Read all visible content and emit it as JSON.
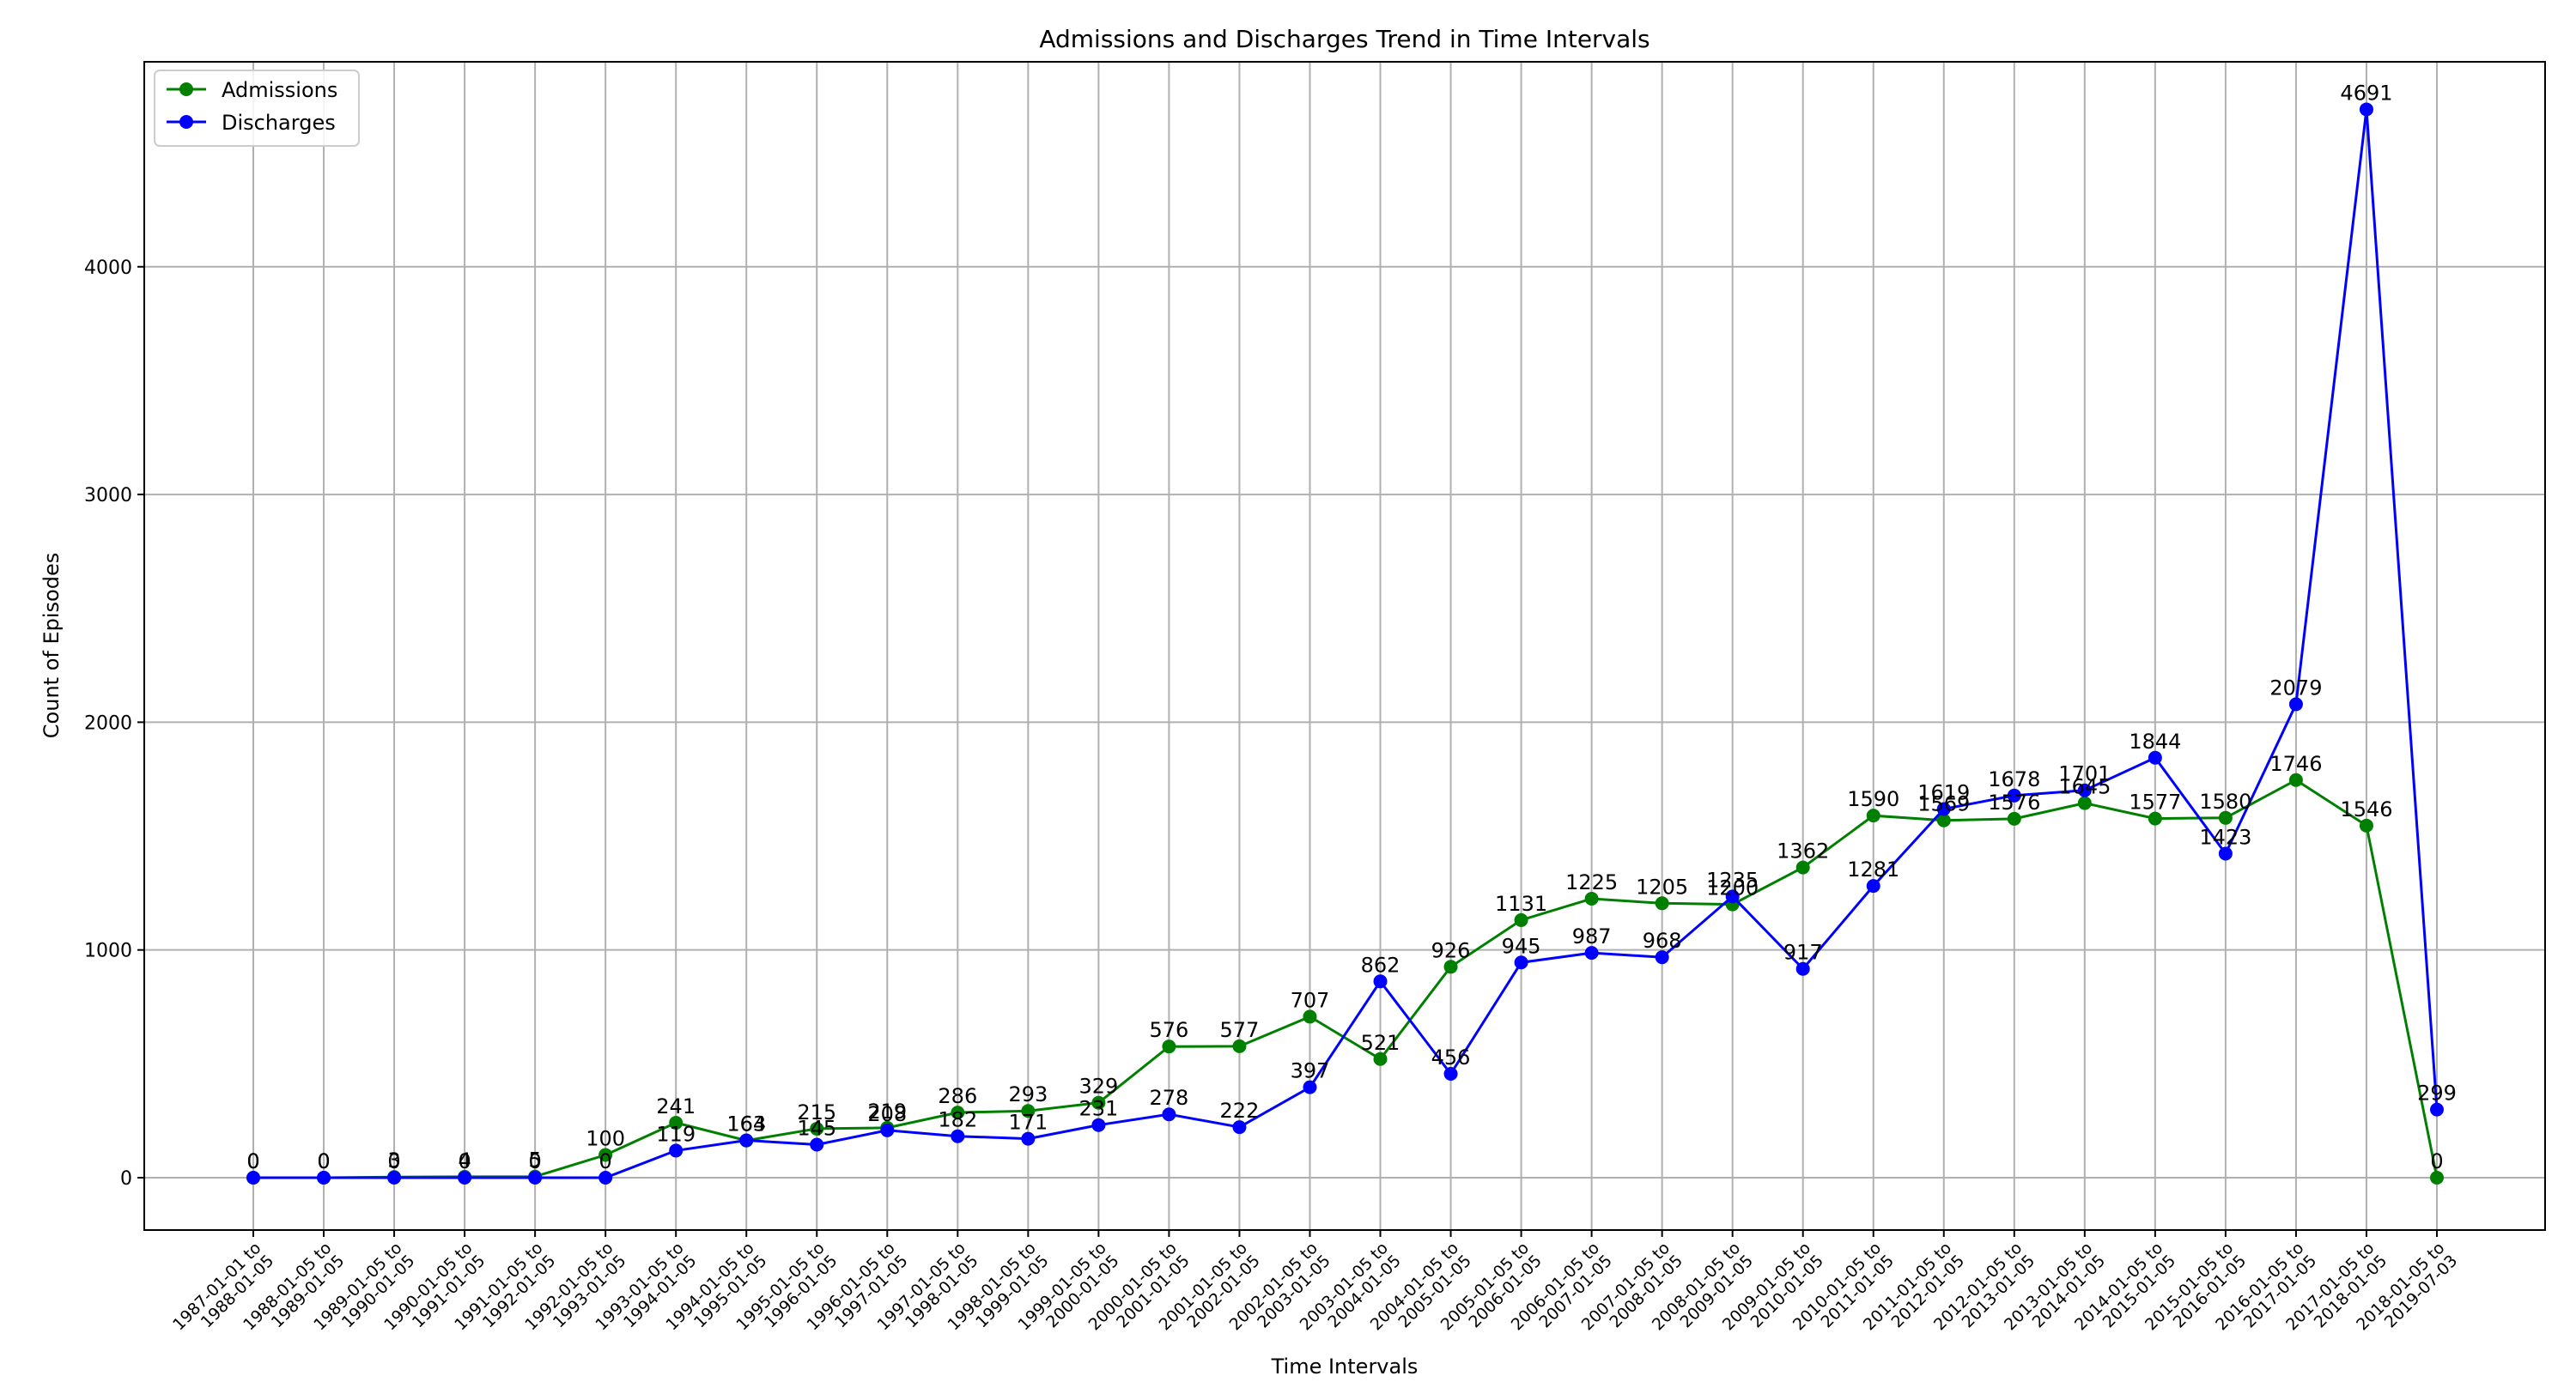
{
  "chart_data": {
    "type": "line",
    "title": "Admissions and Discharges Trend in Time Intervals",
    "xlabel": "Time Intervals",
    "ylabel": "Count of Episodes",
    "ylim": [
      -230,
      4900
    ],
    "yticks": [
      0,
      1000,
      2000,
      3000,
      4000
    ],
    "grid": true,
    "legend_position": "top-left",
    "categories": [
      [
        "1987-01-01 to",
        "1988-01-05"
      ],
      [
        "1988-01-05 to",
        "1989-01-05"
      ],
      [
        "1989-01-05 to",
        "1990-01-05"
      ],
      [
        "1990-01-05 to",
        "1991-01-05"
      ],
      [
        "1991-01-05 to",
        "1992-01-05"
      ],
      [
        "1992-01-05 to",
        "1993-01-05"
      ],
      [
        "1993-01-05 to",
        "1994-01-05"
      ],
      [
        "1994-01-05 to",
        "1995-01-05"
      ],
      [
        "1995-01-05 to",
        "1996-01-05"
      ],
      [
        "1996-01-05 to",
        "1997-01-05"
      ],
      [
        "1997-01-05 to",
        "1998-01-05"
      ],
      [
        "1998-01-05 to",
        "1999-01-05"
      ],
      [
        "1999-01-05 to",
        "2000-01-05"
      ],
      [
        "2000-01-05 to",
        "2001-01-05"
      ],
      [
        "2001-01-05 to",
        "2002-01-05"
      ],
      [
        "2002-01-05 to",
        "2003-01-05"
      ],
      [
        "2003-01-05 to",
        "2004-01-05"
      ],
      [
        "2004-01-05 to",
        "2005-01-05"
      ],
      [
        "2005-01-05 to",
        "2006-01-05"
      ],
      [
        "2006-01-05 to",
        "2007-01-05"
      ],
      [
        "2007-01-05 to",
        "2008-01-05"
      ],
      [
        "2008-01-05 to",
        "2009-01-05"
      ],
      [
        "2009-01-05 to",
        "2010-01-05"
      ],
      [
        "2010-01-05 to",
        "2011-01-05"
      ],
      [
        "2011-01-05 to",
        "2012-01-05"
      ],
      [
        "2012-01-05 to",
        "2013-01-05"
      ],
      [
        "2013-01-05 to",
        "2014-01-05"
      ],
      [
        "2014-01-05 to",
        "2015-01-05"
      ],
      [
        "2015-01-05 to",
        "2016-01-05"
      ],
      [
        "2016-01-05 to",
        "2017-01-05"
      ],
      [
        "2017-01-05 to",
        "2018-01-05"
      ],
      [
        "2018-01-05 to",
        "2019-07-03"
      ]
    ],
    "series": [
      {
        "name": "Admissions",
        "color": "#007f00",
        "values": [
          0,
          0,
          3,
          4,
          5,
          100,
          241,
          163,
          215,
          219,
          286,
          293,
          329,
          576,
          577,
          707,
          521,
          926,
          1131,
          1225,
          1205,
          1200,
          1362,
          1590,
          1569,
          1576,
          1645,
          1577,
          1580,
          1746,
          1546,
          0
        ]
      },
      {
        "name": "Discharges",
        "color": "#0000ff",
        "values": [
          0,
          0,
          0,
          0,
          0,
          0,
          119,
          164,
          145,
          208,
          182,
          171,
          231,
          278,
          222,
          397,
          862,
          456,
          945,
          987,
          968,
          1235,
          917,
          1281,
          1619,
          1678,
          1701,
          1844,
          1423,
          2079,
          4691,
          299
        ]
      }
    ]
  }
}
